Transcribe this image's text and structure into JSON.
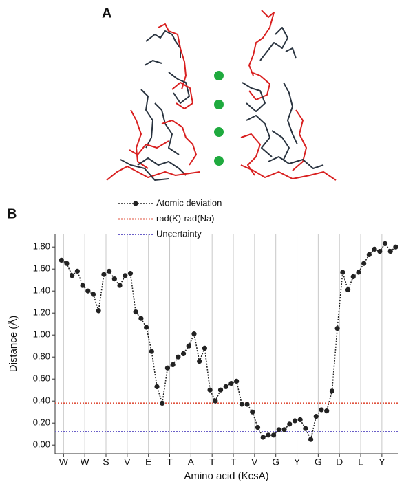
{
  "chart_data": {
    "type": "line",
    "panel_a_label": "A",
    "panel_b_label": "B",
    "xlabel": "Amino acid (KcsA)",
    "ylabel": "Distance (Å)",
    "xlim": [
      0.6,
      16.75
    ],
    "xticks": [
      {
        "value": 1,
        "label": "W"
      },
      {
        "value": 2,
        "label": "W"
      },
      {
        "value": 3,
        "label": "S"
      },
      {
        "value": 4,
        "label": "V"
      },
      {
        "value": 5,
        "label": "E"
      },
      {
        "value": 6,
        "label": "T"
      },
      {
        "value": 7,
        "label": "A"
      },
      {
        "value": 8,
        "label": "T"
      },
      {
        "value": 9,
        "label": "T"
      },
      {
        "value": 10,
        "label": "V"
      },
      {
        "value": 11,
        "label": "G"
      },
      {
        "value": 12,
        "label": "Y"
      },
      {
        "value": 13,
        "label": "G"
      },
      {
        "value": 14,
        "label": "D"
      },
      {
        "value": 15,
        "label": "L"
      },
      {
        "value": 16,
        "label": "Y"
      }
    ],
    "ylim": [
      -0.08,
      1.92
    ],
    "yticks": [
      {
        "value": 0,
        "label": "0.00"
      },
      {
        "value": 0.2,
        "label": "0.20"
      },
      {
        "value": 0.4,
        "label": "0.40"
      },
      {
        "value": 0.6,
        "label": "0.60"
      },
      {
        "value": 0.8,
        "label": "0.80"
      },
      {
        "value": 1,
        "label": "1.00"
      },
      {
        "value": 1.2,
        "label": "1.20"
      },
      {
        "value": 1.4,
        "label": "1.40"
      },
      {
        "value": 1.6,
        "label": "1.60"
      },
      {
        "value": 1.8,
        "label": "1.80"
      }
    ],
    "grid": true,
    "series": [
      {
        "name": "Atomic deviation",
        "color": "#222222",
        "x": [
          0.9,
          1.15,
          1.4,
          1.65,
          1.9,
          2.15,
          2.4,
          2.65,
          2.9,
          3.15,
          3.4,
          3.65,
          3.9,
          4.15,
          4.4,
          4.65,
          4.9,
          5.15,
          5.4,
          5.65,
          5.9,
          6.15,
          6.4,
          6.65,
          6.9,
          7.15,
          7.4,
          7.65,
          7.9,
          8.15,
          8.4,
          8.65,
          8.9,
          9.15,
          9.4,
          9.65,
          9.9,
          10.15,
          10.4,
          10.65,
          10.9,
          11.15,
          11.4,
          11.65,
          11.9,
          12.15,
          12.4,
          12.65,
          12.9,
          13.15,
          13.4,
          13.65,
          13.9,
          14.15,
          14.4,
          14.65,
          14.9,
          15.15,
          15.4,
          15.65,
          15.9,
          16.15,
          16.4,
          16.65
        ],
        "values": [
          1.68,
          1.65,
          1.54,
          1.58,
          1.45,
          1.4,
          1.37,
          1.22,
          1.55,
          1.58,
          1.51,
          1.45,
          1.54,
          1.56,
          1.21,
          1.15,
          1.07,
          0.85,
          0.53,
          0.38,
          0.7,
          0.73,
          0.8,
          0.83,
          0.9,
          1.01,
          0.76,
          0.88,
          0.5,
          0.4,
          0.5,
          0.53,
          0.56,
          0.58,
          0.37,
          0.37,
          0.3,
          0.16,
          0.07,
          0.09,
          0.09,
          0.14,
          0.14,
          0.19,
          0.22,
          0.23,
          0.15,
          0.05,
          0.26,
          0.32,
          0.31,
          0.49,
          1.06,
          1.57,
          1.41,
          1.53,
          1.57,
          1.65,
          1.73,
          1.78,
          1.76,
          1.83,
          1.76,
          1.8
        ]
      }
    ],
    "hlines": [
      {
        "name": "rad(K)-rad(Na)",
        "color": "#e0533f",
        "value": 0.38
      },
      {
        "name": "Uncertainty",
        "color": "#6a5fc8",
        "value": 0.12
      }
    ]
  }
}
